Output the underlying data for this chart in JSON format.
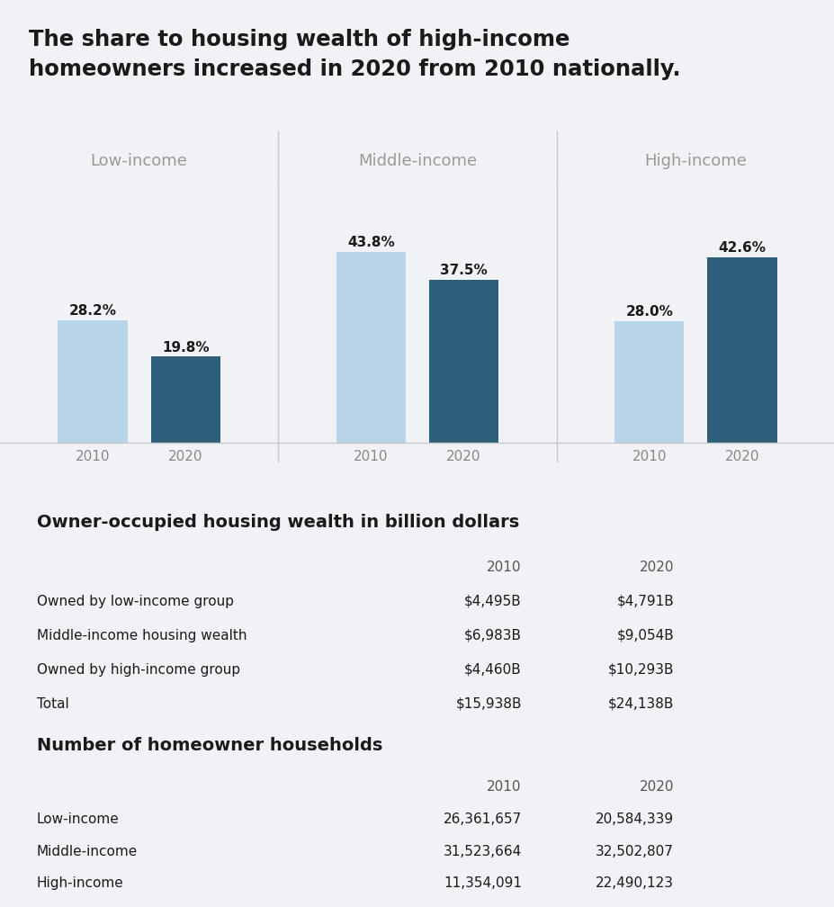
{
  "title": "The share to housing wealth of high-income\nhomeowners increased in 2020 from 2010 nationally.",
  "title_bg": "#dce4ed",
  "chart_bg": "#ffffff",
  "section_gap_bg": "#f0f0f0",
  "group_labels": [
    "Low-income",
    "Middle-income",
    "High-income"
  ],
  "years": [
    "2010",
    "2020"
  ],
  "values": [
    [
      28.2,
      19.8
    ],
    [
      43.8,
      37.5
    ],
    [
      28.0,
      42.6
    ]
  ],
  "bar_labels": [
    [
      "28.2%",
      "19.8%"
    ],
    [
      "43.8%",
      "37.5%"
    ],
    [
      "28.0%",
      "42.6%"
    ]
  ],
  "color_2010": "#b8d4e8",
  "color_2020": "#2e5f7a",
  "divider_color": "#c8c8c8",
  "group_label_color": "#999999",
  "year_label_color": "#888888",
  "bar_label_color": "#1a1a1a",
  "table1_title": "Owner-occupied housing wealth in billion dollars",
  "table1_bg": "#dce4ed",
  "table1_header": [
    "",
    "2010",
    "2020"
  ],
  "table1_rows": [
    [
      "Owned by low-income group",
      "$4,495B",
      "$4,791B"
    ],
    [
      "Middle-income housing wealth",
      "$6,983B",
      "$9,054B"
    ],
    [
      "Owned by high-income group",
      "$4,460B",
      "$10,293B"
    ],
    [
      "Total",
      "$15,938B",
      "$24,138B"
    ]
  ],
  "table1_row_colors": [
    "#ffffff",
    "#edf1f6",
    "#ffffff",
    "#edf1f6"
  ],
  "table2_title": "Number of homeowner households",
  "table2_bg": "#dce4ed",
  "table2_header": [
    "",
    "2010",
    "2020"
  ],
  "table2_rows": [
    [
      "Low-income",
      "26,361,657",
      "20,584,339"
    ],
    [
      "Middle-income",
      "31,523,664",
      "32,502,807"
    ],
    [
      "High-income",
      "11,354,091",
      "22,490,123"
    ]
  ],
  "table2_row_colors": [
    "#ffffff",
    "#edf1f6",
    "#ffffff"
  ],
  "overall_bg": "#f0f2f5"
}
